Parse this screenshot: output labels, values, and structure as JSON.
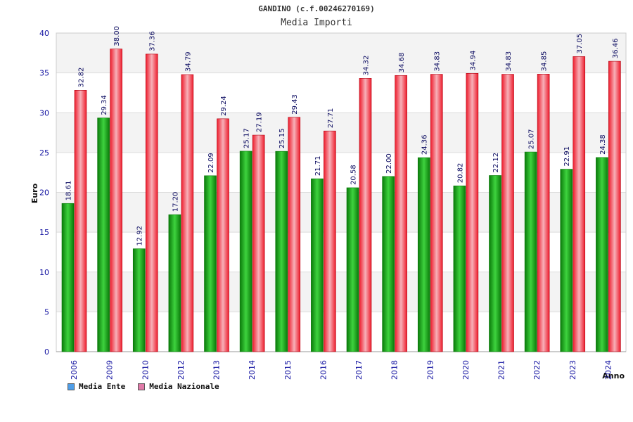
{
  "chart_data": {
    "type": "bar",
    "title": "GANDINO (c.f.00246270169)",
    "subtitle": "Media Importi",
    "xlabel": "Anno",
    "ylabel": "Euro",
    "ylim": [
      0,
      40
    ],
    "yticks": [
      0,
      5,
      10,
      15,
      20,
      25,
      30,
      35,
      40
    ],
    "categories": [
      "2006",
      "2009",
      "2010",
      "2012",
      "2013",
      "2014",
      "2015",
      "2016",
      "2017",
      "2018",
      "2019",
      "2020",
      "2021",
      "2022",
      "2023",
      "2024"
    ],
    "series": [
      {
        "name": "Media Ente",
        "values": [
          18.61,
          29.34,
          12.92,
          17.2,
          22.09,
          25.17,
          25.15,
          21.71,
          20.58,
          22.0,
          24.36,
          20.82,
          22.12,
          25.07,
          22.91,
          24.38
        ],
        "labels": [
          "18.61",
          "29.34",
          "12.92",
          "17.20",
          "22.09",
          "25.17",
          "25.15",
          "21.71",
          "20.58",
          "22.00",
          "24.36",
          "20.82",
          "22.12",
          "25.07",
          "22.91",
          "24.38"
        ]
      },
      {
        "name": "Media Nazionale",
        "values": [
          32.82,
          38.0,
          37.36,
          34.79,
          29.24,
          27.19,
          29.43,
          27.71,
          34.32,
          34.68,
          34.83,
          34.94,
          34.83,
          34.85,
          37.05,
          36.46
        ],
        "labels": [
          "32.82",
          "38.00",
          "37.36",
          "34.79",
          "29.24",
          "27.19",
          "29.43",
          "27.71",
          "34.32",
          "34.68",
          "34.83",
          "34.94",
          "34.83",
          "34.85",
          "37.05",
          "36.46"
        ]
      }
    ],
    "legend": [
      "Media Ente",
      "Media Nazionale"
    ],
    "legend_position": "bottom-left",
    "grid": true
  },
  "colors": {
    "ente_bar": "#16b016",
    "ente_dark": "#0a7a0a",
    "naz_bar": "#ee1c2c",
    "naz_light": "#f7b0b8",
    "legend_ente": "#4f9ee8",
    "legend_naz": "#e07aa8",
    "axis_text": "#1010a0",
    "band": "#f3f3f3"
  }
}
